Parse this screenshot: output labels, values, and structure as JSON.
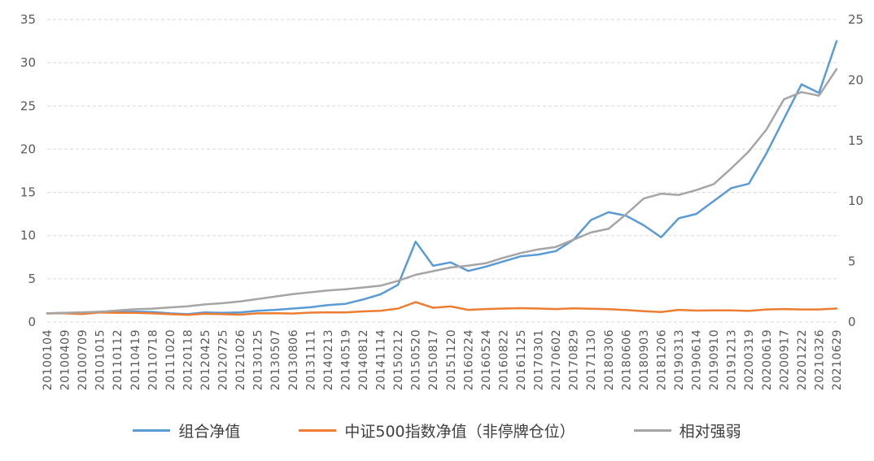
{
  "chart_data": {
    "type": "line",
    "title": "",
    "xlabel": "",
    "ylabel_left": "",
    "ylabel_right": "",
    "grid": "horizontal-dashed",
    "legend_position": "bottom",
    "background": "#ffffff",
    "x": [
      "20100104",
      "20100409",
      "20100709",
      "20101015",
      "20110112",
      "20110419",
      "20110718",
      "20111020",
      "20120118",
      "20120425",
      "20120725",
      "20121026",
      "20130125",
      "20130507",
      "20130806",
      "20131111",
      "20140213",
      "20140519",
      "20140812",
      "20141114",
      "20150212",
      "20150520",
      "20150817",
      "20151120",
      "20160224",
      "20160524",
      "20160822",
      "20161125",
      "20170301",
      "20170602",
      "20170829",
      "20171130",
      "20180306",
      "20180606",
      "20180903",
      "20181206",
      "20190313",
      "20190614",
      "20190910",
      "20191213",
      "20200319",
      "20200619",
      "20200917",
      "20201222",
      "20210326",
      "20210629"
    ],
    "axes": {
      "left": {
        "min": 0,
        "max": 35,
        "ticks": [
          0,
          5,
          10,
          15,
          20,
          25,
          30,
          35
        ]
      },
      "right": {
        "min": 0,
        "max": 25,
        "ticks": [
          0,
          5,
          10,
          15,
          20,
          25
        ]
      }
    },
    "series": [
      {
        "id": "portfolio-nav",
        "name": "组合净值",
        "color": "#5B9BD5",
        "axis": "left",
        "values": [
          1.0,
          1.05,
          0.95,
          1.2,
          1.15,
          1.2,
          1.15,
          1.0,
          0.9,
          1.1,
          1.05,
          1.1,
          1.3,
          1.4,
          1.55,
          1.7,
          1.95,
          2.1,
          2.6,
          3.2,
          4.3,
          9.3,
          6.5,
          6.9,
          5.9,
          6.4,
          7.0,
          7.6,
          7.8,
          8.2,
          9.5,
          11.8,
          12.7,
          12.3,
          11.2,
          9.8,
          12.0,
          12.5,
          14.0,
          15.5,
          16.0,
          19.5,
          23.5,
          27.5,
          26.5,
          32.5
        ]
      },
      {
        "id": "csi500-nav",
        "name": "中证500指数净值（非停牌仓位）",
        "color": "#ED7D31",
        "axis": "left",
        "values": [
          1.0,
          1.0,
          0.92,
          1.1,
          1.05,
          1.05,
          1.0,
          0.9,
          0.82,
          0.95,
          0.9,
          0.85,
          1.0,
          1.02,
          0.98,
          1.08,
          1.12,
          1.1,
          1.22,
          1.3,
          1.55,
          2.3,
          1.65,
          1.8,
          1.4,
          1.5,
          1.55,
          1.6,
          1.55,
          1.5,
          1.58,
          1.52,
          1.48,
          1.38,
          1.25,
          1.15,
          1.4,
          1.32,
          1.35,
          1.35,
          1.28,
          1.45,
          1.5,
          1.45,
          1.45,
          1.55
        ]
      },
      {
        "id": "relative-strength",
        "name": "相对强弱",
        "color": "#A5A5A5",
        "axis": "right",
        "values": [
          0.7,
          0.75,
          0.8,
          0.85,
          0.95,
          1.05,
          1.1,
          1.2,
          1.3,
          1.45,
          1.55,
          1.7,
          1.9,
          2.1,
          2.3,
          2.45,
          2.6,
          2.7,
          2.85,
          3.0,
          3.4,
          3.9,
          4.2,
          4.5,
          4.65,
          4.85,
          5.3,
          5.7,
          6.0,
          6.2,
          6.8,
          7.4,
          7.7,
          8.9,
          10.2,
          10.6,
          10.5,
          10.9,
          11.4,
          12.7,
          14.1,
          15.9,
          18.4,
          19.0,
          18.7,
          20.9
        ]
      }
    ]
  }
}
